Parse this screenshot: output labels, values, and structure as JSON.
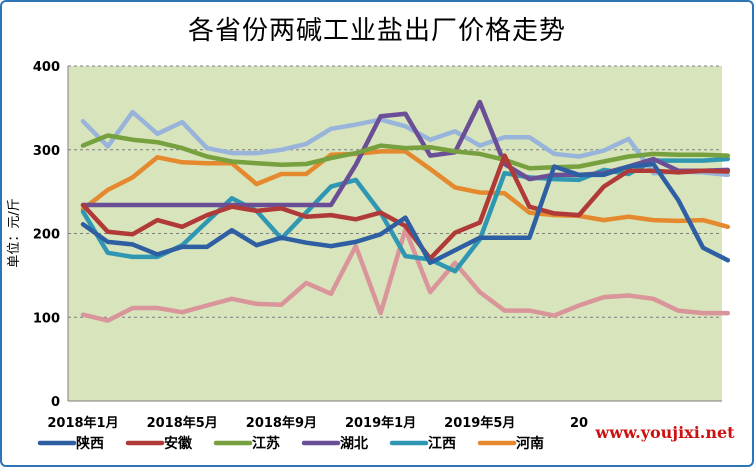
{
  "chart_data": {
    "type": "line",
    "title": "各省份两碱工业盐出厂价格走势",
    "ylabel": "单位：元/斤",
    "xlabel": "",
    "ylim": [
      0,
      400
    ],
    "yticks": [
      0,
      100,
      200,
      300,
      400
    ],
    "grid": true,
    "legend_position": "bottom",
    "x": [
      "2018-01",
      "2018-02",
      "2018-03",
      "2018-04",
      "2018-05",
      "2018-06",
      "2018-07",
      "2018-08",
      "2018-09",
      "2018-10",
      "2018-11",
      "2018-12",
      "2019-01",
      "2019-02",
      "2019-03",
      "2019-04",
      "2019-05",
      "2019-06",
      "2019-07",
      "2019-08",
      "2019-09",
      "2019-10",
      "2019-11",
      "2019-12",
      "2020-01",
      "2020-02",
      "2020-03"
    ],
    "xtick_labels": [
      "2018年1月",
      "2018年5月",
      "2018年9月",
      "2019年1月",
      "2019年5月",
      "20"
    ],
    "xtick_index": [
      0,
      4,
      8,
      12,
      16,
      20
    ],
    "series": [
      {
        "name": "陕西",
        "color": "#2e5fa3",
        "values": [
          211,
          190,
          187,
          175,
          184,
          184,
          204,
          186,
          195,
          189,
          185,
          190,
          199,
          219,
          165,
          180,
          195,
          195,
          195,
          280,
          270,
          270,
          280,
          283,
          240,
          183,
          168
        ]
      },
      {
        "name": "安徽",
        "color": "#b03a37",
        "values": [
          234,
          202,
          199,
          216,
          208,
          222,
          232,
          227,
          230,
          220,
          222,
          217,
          225,
          209,
          170,
          201,
          213,
          293,
          232,
          224,
          222,
          256,
          275,
          275,
          273,
          275,
          274
        ]
      },
      {
        "name": "江苏",
        "color": "#77a03e",
        "values": [
          305,
          317,
          312,
          309,
          302,
          292,
          286,
          284,
          282,
          283,
          290,
          296,
          305,
          302,
          303,
          298,
          295,
          288,
          278,
          279,
          280,
          286,
          292,
          295,
          294,
          294,
          293
        ]
      },
      {
        "name": "湖北",
        "color": "#6b4f96",
        "values": [
          234,
          234,
          234,
          234,
          234,
          234,
          234,
          234,
          234,
          234,
          234,
          282,
          340,
          343,
          293,
          297,
          357,
          283,
          265,
          270,
          270,
          272,
          280,
          289,
          275,
          275,
          276
        ]
      },
      {
        "name": "江西",
        "color": "#3097b3",
        "values": [
          226,
          177,
          172,
          172,
          186,
          214,
          242,
          227,
          194,
          225,
          256,
          264,
          225,
          173,
          169,
          155,
          193,
          272,
          267,
          265,
          264,
          276,
          271,
          287,
          287,
          287,
          289
        ]
      },
      {
        "name": "河南",
        "color": "#e5892f",
        "values": [
          229,
          252,
          267,
          291,
          285,
          284,
          284,
          259,
          271,
          271,
          294,
          295,
          298,
          298,
          277,
          255,
          249,
          248,
          225,
          222,
          221,
          216,
          220,
          216,
          215,
          216,
          208
        ]
      },
      {
        "name": "",
        "color": "#98b4da",
        "values": [
          334,
          304,
          345,
          319,
          333,
          302,
          296,
          296,
          300,
          307,
          325,
          330,
          336,
          328,
          312,
          322,
          305,
          315,
          315,
          295,
          292,
          299,
          313,
          272,
          274,
          273,
          270
        ]
      },
      {
        "name": "",
        "color": "#d9959a",
        "values": [
          103,
          96,
          111,
          111,
          106,
          114,
          122,
          116,
          115,
          141,
          128,
          185,
          105,
          205,
          130,
          165,
          130,
          108,
          108,
          102,
          114,
          124,
          126,
          122,
          108,
          105,
          105
        ]
      }
    ]
  },
  "watermark": "www.youjixi.net"
}
